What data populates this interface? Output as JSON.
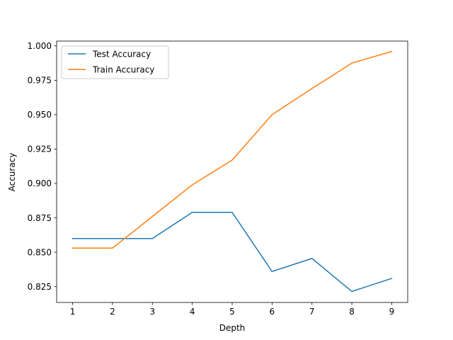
{
  "chart_data": {
    "type": "line",
    "title": "",
    "xlabel": "Depth",
    "ylabel": "Accuracy",
    "x": [
      1,
      2,
      3,
      4,
      5,
      6,
      7,
      8,
      9
    ],
    "xlim": [
      0.6,
      9.4
    ],
    "ylim": [
      0.8135,
      1.0035
    ],
    "xticks": [
      "1",
      "2",
      "3",
      "4",
      "5",
      "6",
      "7",
      "8",
      "9"
    ],
    "yticks": [
      "0.825",
      "0.850",
      "0.875",
      "0.900",
      "0.925",
      "0.950",
      "0.975",
      "1.000"
    ],
    "grid": false,
    "legend": "top-left",
    "series": [
      {
        "name": "Test Accuracy",
        "color": "#1f77b4",
        "values": [
          0.86,
          0.86,
          0.86,
          0.879,
          0.879,
          0.836,
          0.8455,
          0.8215,
          0.831
        ]
      },
      {
        "name": "Train Accuracy",
        "color": "#ff7f0e",
        "values": [
          0.853,
          0.853,
          0.876,
          0.899,
          0.917,
          0.95,
          0.969,
          0.9875,
          0.996
        ]
      }
    ]
  }
}
